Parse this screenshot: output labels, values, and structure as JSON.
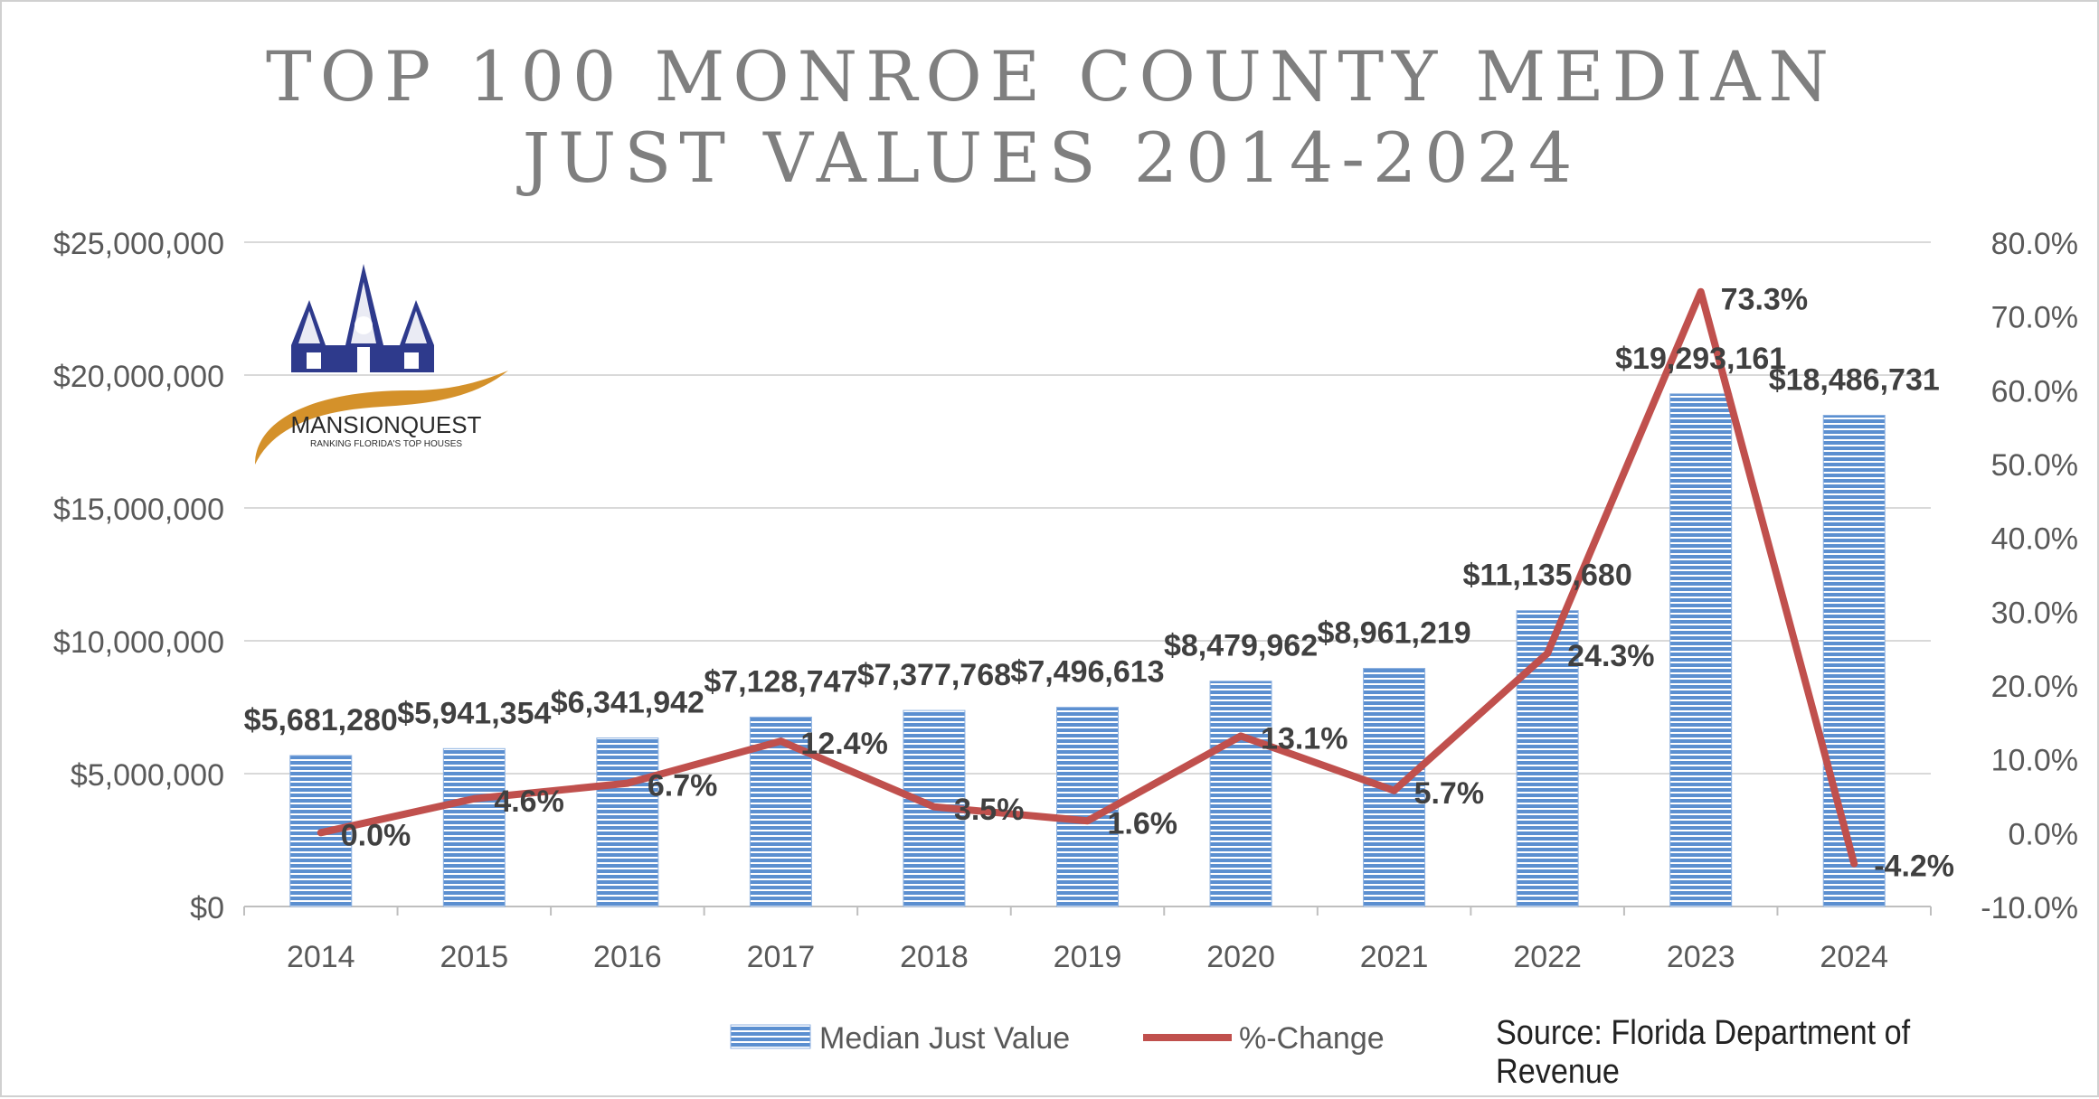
{
  "title_lines": [
    "TOP 100 MONROE COUNTY MEDIAN",
    "JUST VALUES 2014-2024"
  ],
  "source": "Source: Florida Department of Revenue",
  "logo": {
    "name": "MANSIONQUEST",
    "tagline": "RANKING FLORIDA'S TOP HOUSES",
    "colors": {
      "house": "#2e3a8c",
      "swoosh": "#d4912a"
    }
  },
  "colors": {
    "bar": "#5b8fd0",
    "line": "#c0504d",
    "grid": "#d9d9d9",
    "axis_text": "#595959",
    "label_text": "#404040"
  },
  "chart_data": {
    "type": "bar",
    "title": "TOP 100 MONROE COUNTY MEDIAN JUST VALUES 2014-2024",
    "categories": [
      "2014",
      "2015",
      "2016",
      "2017",
      "2018",
      "2019",
      "2020",
      "2021",
      "2022",
      "2023",
      "2024"
    ],
    "series": [
      {
        "name": "Median Just Value",
        "type": "bar",
        "axis": "left",
        "values": [
          5681280,
          5941354,
          6341942,
          7128747,
          7377768,
          7496613,
          8479962,
          8961219,
          11135680,
          19293161,
          18486731
        ],
        "labels": [
          "$5,681,280",
          "$5,941,354",
          "$6,341,942",
          "$7,128,747",
          "$7,377,768",
          "$7,496,613",
          "$8,479,962",
          "$8,961,219",
          "$11,135,680",
          "$19,293,161",
          "$18,486,731"
        ]
      },
      {
        "name": "%-Change",
        "type": "line",
        "axis": "right",
        "values": [
          0.0,
          4.6,
          6.7,
          12.4,
          3.5,
          1.6,
          13.1,
          5.7,
          24.3,
          73.3,
          -4.2
        ],
        "labels": [
          "0.0%",
          "4.6%",
          "6.7%",
          "12.4%",
          "3.5%",
          "1.6%",
          "13.1%",
          "5.7%",
          "24.3%",
          "73.3%",
          "-4.2%"
        ]
      }
    ],
    "y_left": {
      "min": 0,
      "max": 25000000,
      "step": 5000000,
      "ticks": [
        "$0",
        "$5,000,000",
        "$10,000,000",
        "$15,000,000",
        "$20,000,000",
        "$25,000,000"
      ]
    },
    "y_right": {
      "min": -10,
      "max": 80,
      "step": 10,
      "ticks": [
        "-10.0%",
        "0.0%",
        "10.0%",
        "20.0%",
        "30.0%",
        "40.0%",
        "50.0%",
        "60.0%",
        "70.0%",
        "80.0%"
      ]
    },
    "grid": true,
    "legend_position": "bottom"
  }
}
